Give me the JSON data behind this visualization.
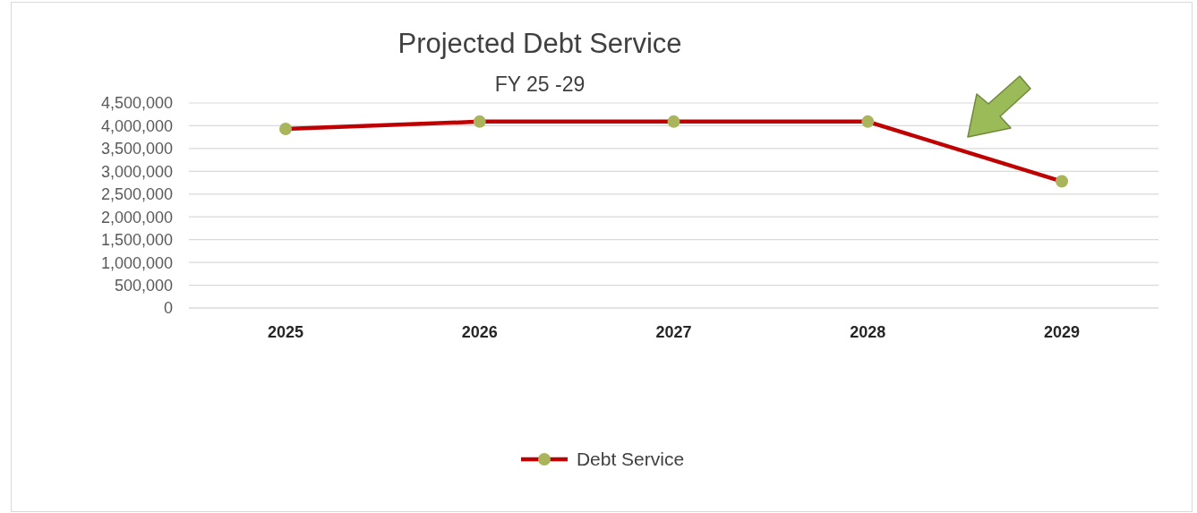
{
  "chart_data": {
    "type": "line",
    "title": "Projected Debt Service",
    "subtitle": "FY 25 -29",
    "categories": [
      "2025",
      "2026",
      "2027",
      "2028",
      "2029"
    ],
    "series": [
      {
        "name": "Debt Service",
        "color": "#c00000",
        "colors": [
          "#a9b45b",
          "#a9b45b",
          "#a9b45b",
          "#a9b45b",
          "#a9b45b"
        ],
        "values": [
          3930000,
          4090000,
          4090000,
          4090000,
          2780000
        ]
      }
    ],
    "ylim": [
      0,
      4500000
    ],
    "yticks": [
      0,
      {
        "value": 500000,
        "label": "500,000"
      },
      {
        "value": 1000000,
        "label": "1,000,000"
      },
      {
        "value": 1500000,
        "label": "1,500,000"
      },
      {
        "value": 2000000,
        "label": "2,000,000"
      },
      {
        "value": 2500000,
        "label": "2,500,000"
      },
      {
        "value": 3000000,
        "label": "3,000,000"
      },
      {
        "value": 3500000,
        "label": "3,500,000"
      },
      {
        "value": 4000000,
        "label": "4,000,000"
      },
      {
        "value": 4500000,
        "label": "4,500,000"
      }
    ],
    "grid": "y",
    "legend": "bottom",
    "marker": "circle",
    "line_style": "solid"
  }
}
